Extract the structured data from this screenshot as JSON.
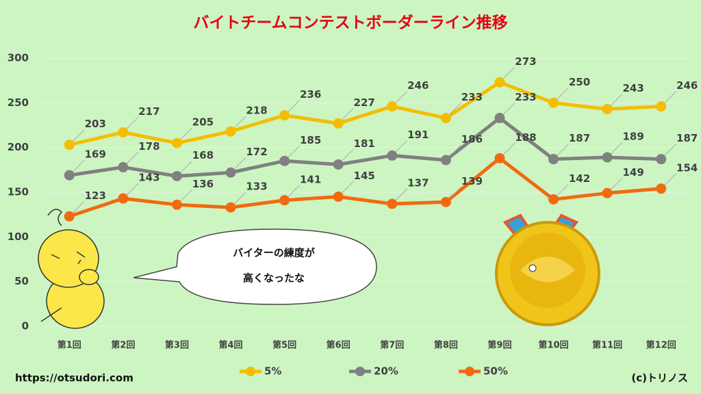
{
  "chart_data": {
    "type": "line",
    "title": "バイトチームコンテストボーダーライン推移",
    "categories": [
      "第1回",
      "第2回",
      "第3回",
      "第4回",
      "第5回",
      "第6回",
      "第7回",
      "第8回",
      "第9回",
      "第10回",
      "第11回",
      "第12回"
    ],
    "series": [
      {
        "name": "5%",
        "color": "#f5bd00",
        "values": [
          203,
          217,
          205,
          218,
          236,
          227,
          246,
          233,
          273,
          250,
          243,
          246
        ]
      },
      {
        "name": "20%",
        "color": "#808080",
        "values": [
          169,
          178,
          168,
          172,
          185,
          181,
          191,
          186,
          233,
          187,
          189,
          187
        ]
      },
      {
        "name": "50%",
        "color": "#f26a10",
        "values": [
          123,
          143,
          136,
          133,
          141,
          145,
          137,
          139,
          188,
          142,
          149,
          154
        ]
      }
    ],
    "ylim": [
      0,
      300
    ],
    "yticks": [
      0,
      50,
      100,
      150,
      200,
      250,
      300
    ],
    "grid": true,
    "legend": "bottom",
    "annotations": [
      "バイターの練度が",
      "高くなったな"
    ],
    "source": "https://otsudori.com",
    "credit": "(c)トリノス"
  }
}
